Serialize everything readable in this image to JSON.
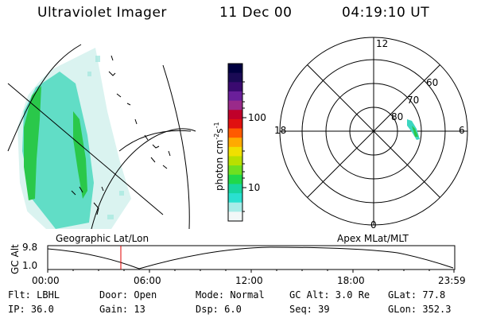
{
  "header": {
    "title": "Ultraviolet Imager",
    "date": "11 Dec 00",
    "time": "04:19:10 UT"
  },
  "colorbar": {
    "unit_label": "photon cm",
    "unit_exp1": "-2",
    "unit_mid": "s",
    "unit_exp2": "-1",
    "ticks": [
      "100",
      "10"
    ],
    "colors": [
      "#000040",
      "#1a0a55",
      "#3a0a70",
      "#6a1f9a",
      "#9a2a8a",
      "#c0002a",
      "#e01010",
      "#ff5a00",
      "#ffaa00",
      "#f0e000",
      "#b8e000",
      "#6ee020",
      "#20d84a",
      "#18d6a0",
      "#2ae0d0",
      "#a8ece8",
      "#f2f8f8"
    ]
  },
  "polar": {
    "mlt_labels": [
      "12",
      "18",
      "6",
      "0"
    ],
    "mlat_labels": [
      "60",
      "70",
      "80"
    ]
  },
  "panel_labels": {
    "geo": "Geographic Lat/Lon",
    "apex": "Apex MLat/MLT"
  },
  "altitude_plot": {
    "y_label": "GC Alt",
    "y_ticks": [
      "9.8",
      "1.0"
    ],
    "x_ticks": [
      "00:00",
      "06:00",
      "12:00",
      "18:00",
      "23:59"
    ],
    "current_time_marker": "04:19"
  },
  "info": {
    "flt": "Flt: LBHL",
    "ip": "IP: 36.0",
    "door": "Door: Open",
    "gain": "Gain: 13",
    "mode": "Mode: Normal",
    "dsp": "Dsp:    6.0",
    "gcalt": "GC Alt: 3.0 Re",
    "seq": "Seq: 39",
    "glat": "GLat:  77.8",
    "glon": "GLon: 352.3"
  },
  "colors": {
    "marker": "#e00000",
    "aurora_bright": "#22cc55",
    "aurora_mid": "#22d6b0",
    "aurora_faint": "#a8e8e0"
  }
}
